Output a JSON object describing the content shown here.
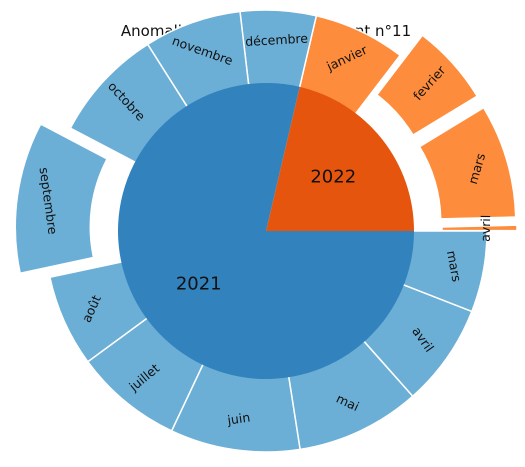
{
  "chart_data": {
    "type": "sunburst",
    "title": "Anomalies dans l'arrondissement n°11",
    "start_angle_deg": 0,
    "direction": "counterclockwise",
    "colors": {
      "2021": {
        "inner": "#3182bd",
        "outer": "#6baed6"
      },
      "2022": {
        "inner": "#e6550d",
        "outer": "#fd8d3c"
      },
      "edge": "#ffffff"
    },
    "years": [
      {
        "name": "2022",
        "months": [
          {
            "name": "avril",
            "value": 1,
            "explode": 1.0
          },
          {
            "name": "mars",
            "value": 21,
            "explode": 1.0
          },
          {
            "name": "fevrier",
            "value": 15,
            "explode": 1.0
          },
          {
            "name": "janvier",
            "value": 17,
            "explode": 0
          }
        ]
      },
      {
        "name": "2021",
        "months": [
          {
            "name": "décembre",
            "value": 14,
            "explode": 0
          },
          {
            "name": "novembre",
            "value": 18,
            "explode": 0
          },
          {
            "name": "octobre",
            "value": 21,
            "explode": 0
          },
          {
            "name": "septembre",
            "value": 28,
            "explode": 1.0
          },
          {
            "name": "août",
            "value": 17,
            "explode": 0
          },
          {
            "name": "juillet",
            "value": 20,
            "explode": 0
          },
          {
            "name": "juin",
            "value": 24,
            "explode": 0
          },
          {
            "name": "mai",
            "value": 23,
            "explode": 0
          },
          {
            "name": "avril",
            "value": 19,
            "explode": 0
          },
          {
            "name": "mars",
            "value": 15,
            "explode": 0
          }
        ]
      }
    ]
  }
}
